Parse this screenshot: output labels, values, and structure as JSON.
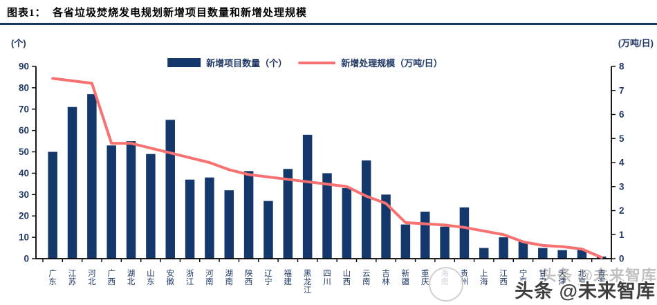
{
  "header": {
    "title": "图表1：  各省垃圾焚烧发电规划新增项目数量和新增处理规模"
  },
  "chart_data": {
    "type": "bar",
    "title": "各省垃圾焚烧发电规划新增项目数量和新增处理规模",
    "categories": [
      "广东",
      "江苏",
      "河北",
      "广西",
      "湖北",
      "山东",
      "安徽",
      "浙江",
      "河南",
      "湖南",
      "陕西",
      "辽宁",
      "福建",
      "黑龙江",
      "四川",
      "山西",
      "云南",
      "吉林",
      "新疆",
      "重庆",
      "海南",
      "贵州",
      "上海",
      "江西",
      "宁夏",
      "甘肃",
      "天津",
      "北京",
      "青海"
    ],
    "series": [
      {
        "name": "新增项目数量（个）",
        "type": "bar",
        "axis": "left",
        "color": "#14386B",
        "values": [
          50,
          71,
          77,
          53,
          55,
          49,
          65,
          37,
          38,
          32,
          41,
          27,
          42,
          58,
          40,
          33,
          46,
          30,
          16,
          22,
          15,
          24,
          5,
          10,
          8,
          5,
          4,
          4,
          1
        ]
      },
      {
        "name": "新增处理规模（万吨/日）",
        "type": "line",
        "axis": "right",
        "color": "#F87171",
        "values": [
          7.5,
          7.4,
          7.3,
          4.8,
          4.8,
          4.6,
          4.4,
          4.2,
          4.0,
          3.7,
          3.5,
          3.4,
          3.3,
          3.2,
          3.1,
          3.0,
          2.6,
          2.3,
          1.5,
          1.45,
          1.4,
          1.3,
          1.15,
          1.0,
          0.7,
          0.55,
          0.5,
          0.4,
          0.05
        ]
      }
    ],
    "left_axis": {
      "label": "(个)",
      "min": 0,
      "max": 90,
      "step": 10
    },
    "right_axis": {
      "label": "(万吨/日)",
      "min": 0,
      "max": 8,
      "step": 1
    },
    "legend_position": "top-center",
    "grid": false
  },
  "watermark": {
    "text": "头条 @未来智库",
    "ghost_text": "头条 @未来智库"
  },
  "colors": {
    "bar": "#14386B",
    "line": "#F87171",
    "navy_text": "#1F3864",
    "title_rule": "#17375E",
    "axis": "#000000"
  }
}
